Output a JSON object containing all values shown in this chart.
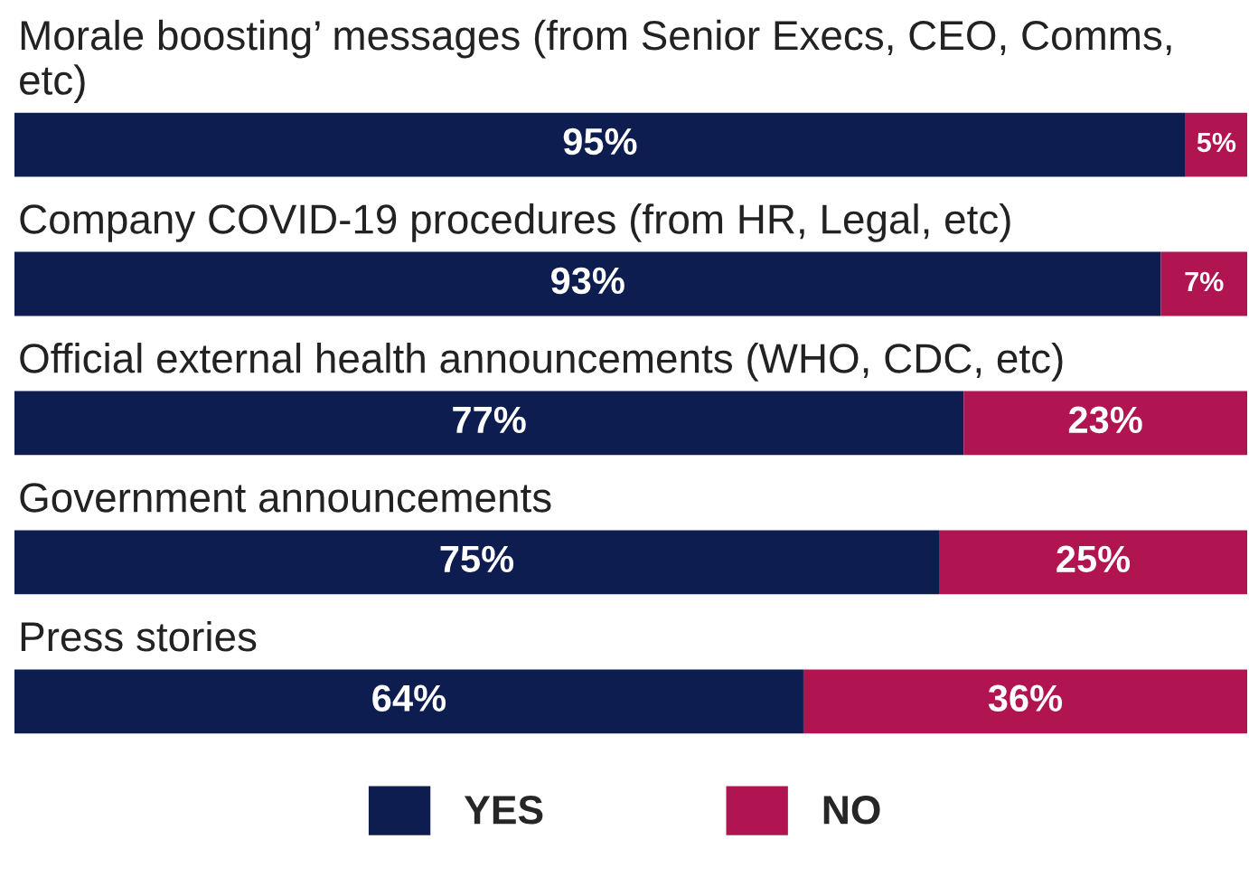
{
  "chart_data": {
    "type": "bar",
    "orientation": "horizontal",
    "stacked": true,
    "categories": [
      "Morale boosting’ messages (from Senior Execs, CEO, Comms, etc)",
      "Company COVID-19 procedures (from HR, Legal, etc)",
      "Official external health announcements (WHO, CDC, etc)",
      "Government announcements",
      "Press stories"
    ],
    "series": [
      {
        "name": "YES",
        "color": "#0e1d4f",
        "values": [
          95,
          93,
          77,
          75,
          64
        ],
        "value_labels": [
          "95%",
          "93%",
          "77%",
          "75%",
          "64%"
        ]
      },
      {
        "name": "NO",
        "color": "#b01552",
        "values": [
          5,
          7,
          23,
          25,
          36
        ],
        "value_labels": [
          "5%",
          "7%",
          "23%",
          "25%",
          "36%"
        ]
      }
    ],
    "xlim": [
      0,
      100
    ],
    "legend": "bottom"
  }
}
